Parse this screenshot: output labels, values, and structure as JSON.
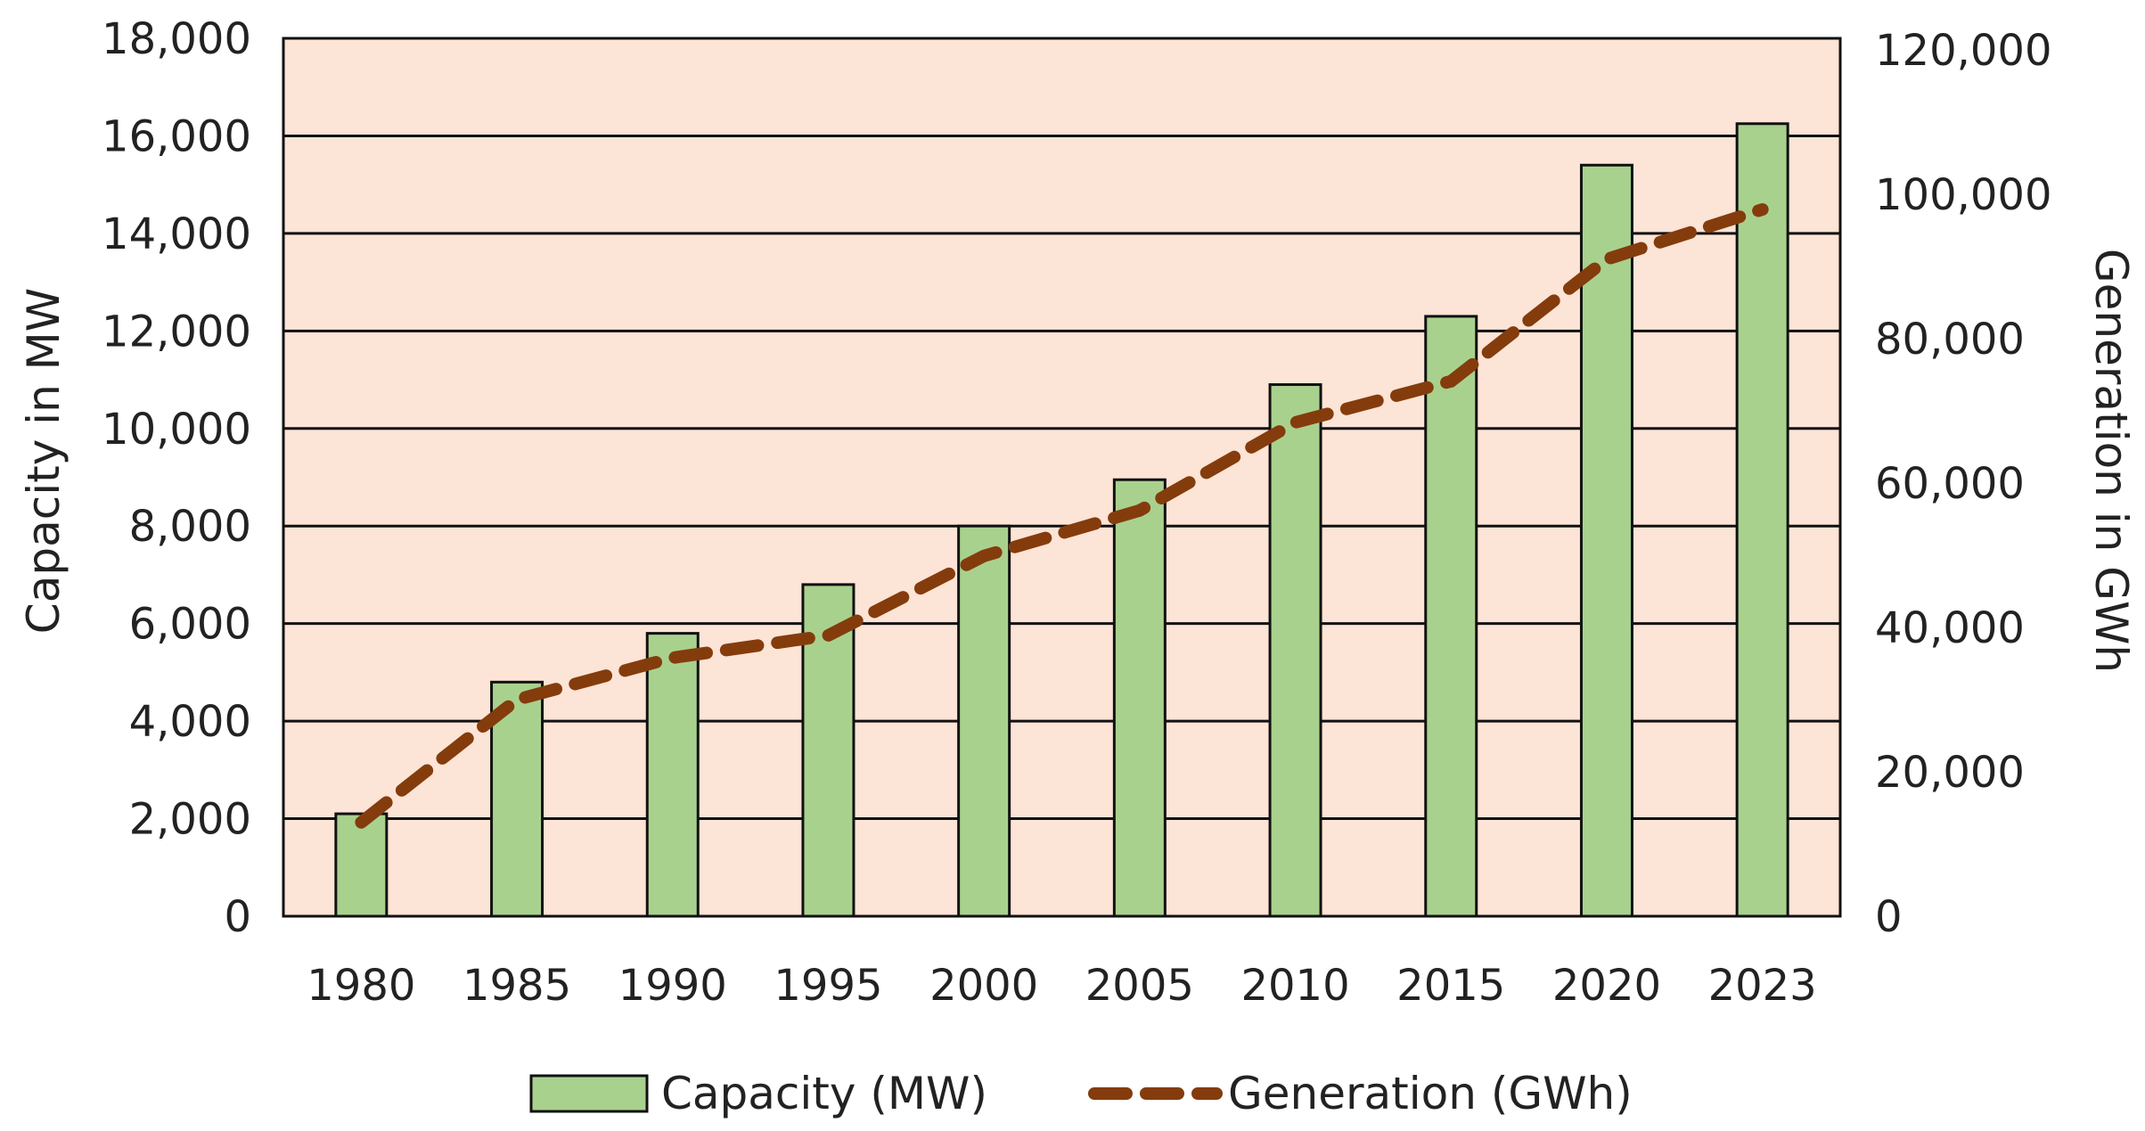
{
  "chart_data": {
    "type": "bar+line",
    "categories": [
      "1980",
      "1985",
      "1990",
      "1995",
      "2000",
      "2005",
      "2010",
      "2015",
      "2020",
      "2023"
    ],
    "series": [
      {
        "name": "Capacity (MW)",
        "type": "bar",
        "axis": "left",
        "values": [
          2100,
          4800,
          5800,
          6800,
          8000,
          8950,
          10900,
          12300,
          15400,
          16250
        ]
      },
      {
        "name": "Generation (GWh)",
        "type": "line",
        "axis": "right",
        "values": [
          13000,
          30000,
          35800,
          38900,
          49900,
          56200,
          68400,
          74100,
          91000,
          97900
        ]
      }
    ],
    "ylabel": "Capacity in MW",
    "y2label": "Generation in GWh",
    "ylim": [
      0,
      18000
    ],
    "y2lim": [
      0,
      120000
    ],
    "yticks": [
      "0",
      "2,000",
      "4,000",
      "6,000",
      "8,000",
      "10,000",
      "12,000",
      "14,000",
      "16,000",
      "18,000"
    ],
    "y2ticks": [
      "0",
      "20,000",
      "40,000",
      "60,000",
      "80,000",
      "100,000",
      "120,000"
    ],
    "grid": true,
    "legend": "bottom",
    "colors": {
      "plot_bg": "#fce4d6",
      "bar": "#a9d18e",
      "line": "#843c0c"
    }
  }
}
